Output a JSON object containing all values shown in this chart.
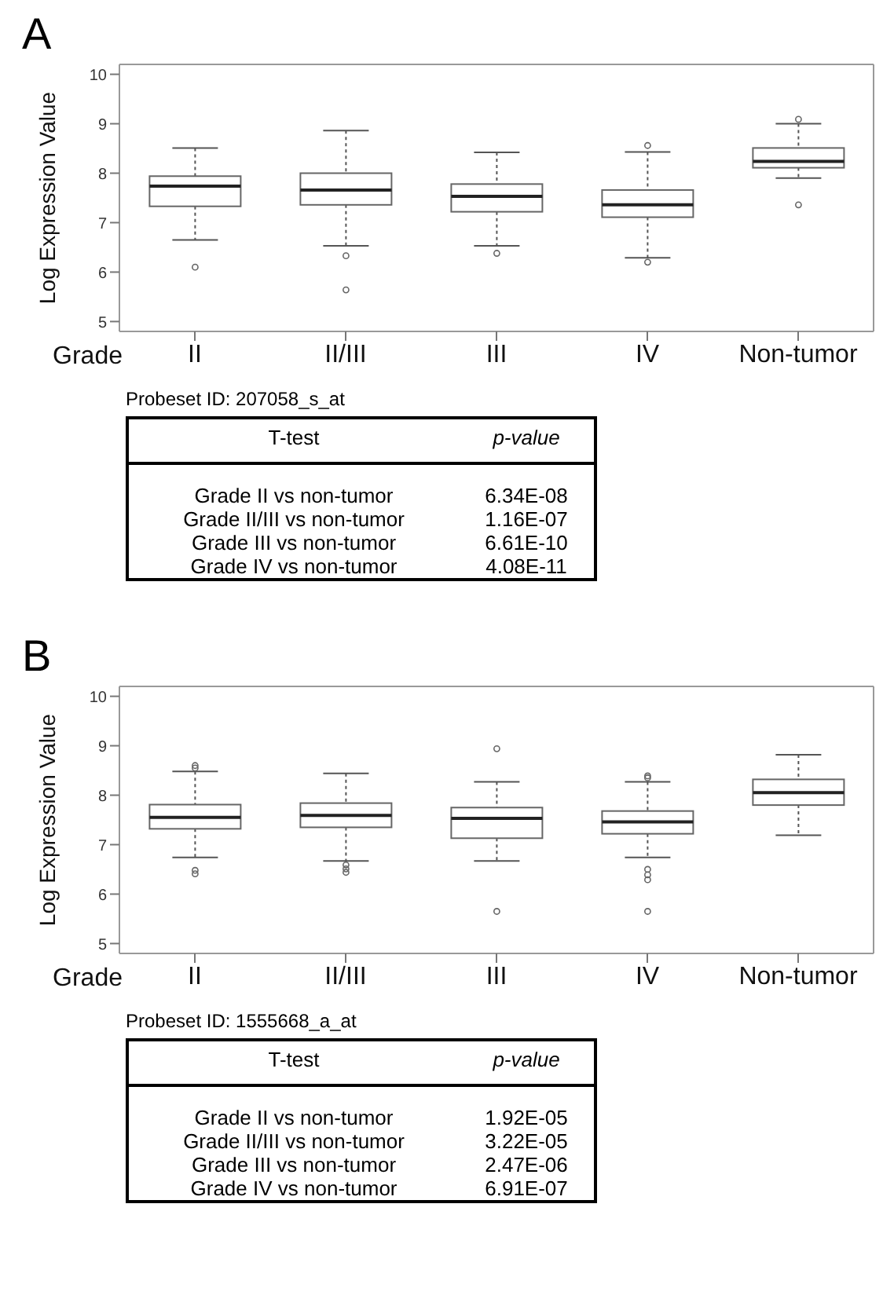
{
  "chart_data": [
    {
      "type": "box",
      "title": "A",
      "xlabel": "Grade",
      "ylabel": "Log Expression Value",
      "categories": [
        "II",
        "II/III",
        "III",
        "IV",
        "Non-tumor"
      ],
      "ylim": [
        4.8,
        10.2
      ],
      "yticks": [
        5,
        6,
        7,
        8,
        9,
        10
      ],
      "grid": false,
      "boxes": [
        {
          "low": 6.65,
          "q1": 7.33,
          "median": 7.74,
          "q3": 7.94,
          "high": 8.51,
          "outliers": [
            6.1
          ]
        },
        {
          "low": 6.53,
          "q1": 7.36,
          "median": 7.66,
          "q3": 8.0,
          "high": 8.86,
          "outliers": [
            6.33,
            5.64
          ]
        },
        {
          "low": 6.53,
          "q1": 7.22,
          "median": 7.53,
          "q3": 7.78,
          "high": 8.42,
          "outliers": [
            6.38
          ]
        },
        {
          "low": 6.29,
          "q1": 7.11,
          "median": 7.36,
          "q3": 7.66,
          "high": 8.43,
          "outliers": [
            8.56,
            6.2
          ]
        },
        {
          "low": 7.9,
          "q1": 8.11,
          "median": 8.24,
          "q3": 8.51,
          "high": 9.0,
          "outliers": [
            9.09,
            7.36
          ]
        }
      ],
      "annotations": [
        "Probeset ID: 207058_s_at",
        "T-test",
        "p-value",
        "Grade II vs non-tumor",
        "6.34E-08",
        "Grade II/III vs non-tumor",
        "1.16E-07",
        "Grade III vs non-tumor",
        "6.61E-10",
        "Grade IV vs non-tumor",
        "4.08E-11"
      ]
    },
    {
      "type": "box",
      "title": "B",
      "xlabel": "Grade",
      "ylabel": "Log Expression Value",
      "categories": [
        "II",
        "II/III",
        "III",
        "IV",
        "Non-tumor"
      ],
      "ylim": [
        4.8,
        10.2
      ],
      "yticks": [
        5,
        6,
        7,
        8,
        9,
        10
      ],
      "grid": false,
      "boxes": [
        {
          "low": 6.74,
          "q1": 7.32,
          "median": 7.55,
          "q3": 7.81,
          "high": 8.48,
          "outliers": [
            8.6,
            8.55,
            6.48,
            6.41
          ]
        },
        {
          "low": 6.67,
          "q1": 7.35,
          "median": 7.59,
          "q3": 7.84,
          "high": 8.44,
          "outliers": [
            6.59,
            6.51,
            6.44
          ]
        },
        {
          "low": 6.67,
          "q1": 7.13,
          "median": 7.53,
          "q3": 7.75,
          "high": 8.27,
          "outliers": [
            8.94,
            5.65
          ]
        },
        {
          "low": 6.74,
          "q1": 7.22,
          "median": 7.46,
          "q3": 7.68,
          "high": 8.27,
          "outliers": [
            8.39,
            8.35,
            6.5,
            6.39,
            6.29,
            5.65
          ]
        },
        {
          "low": 7.19,
          "q1": 7.8,
          "median": 8.05,
          "q3": 8.32,
          "high": 8.82
        }
      ],
      "annotations": [
        "Probeset ID: 1555668_a_at",
        "T-test",
        "p-value",
        "Grade II vs non-tumor",
        "1.92E-05",
        "Grade II/III vs non-tumor",
        "3.22E-05",
        "Grade III vs non-tumor",
        "2.47E-06",
        "Grade IV vs non-tumor",
        "6.91E-07"
      ]
    }
  ]
}
